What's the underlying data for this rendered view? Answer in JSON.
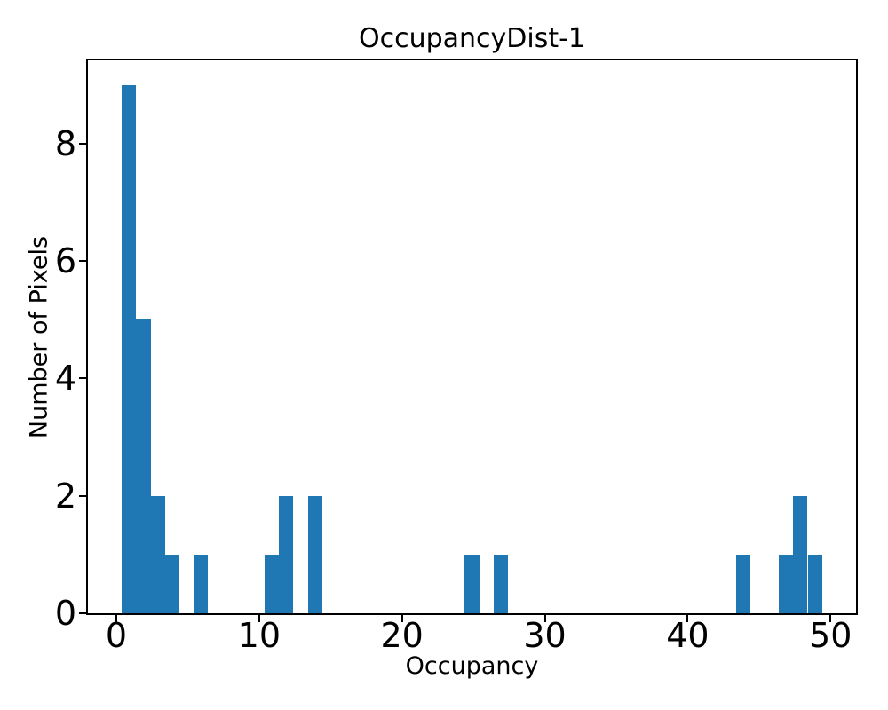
{
  "figure": {
    "background": "#ffffff",
    "text_color": "#000000"
  },
  "chart_data": {
    "type": "bar",
    "subtype": "histogram",
    "title": "OccupancyDist-1",
    "xlabel": "Occupancy",
    "ylabel": "Number of Pixels",
    "bar_color": "#1f77b4",
    "axis_color": "#000000",
    "grid": false,
    "legend": false,
    "xlim": [
      -2.05,
      51.85
    ],
    "ylim": [
      0,
      9.45
    ],
    "x_ticks": [
      0,
      10,
      20,
      30,
      40,
      50
    ],
    "y_ticks": [
      0,
      2,
      4,
      6,
      8
    ],
    "bin_width": 1.0,
    "bars": [
      {
        "x": 0.4,
        "count": 9
      },
      {
        "x": 1.4,
        "count": 5
      },
      {
        "x": 2.4,
        "count": 2
      },
      {
        "x": 3.4,
        "count": 1
      },
      {
        "x": 5.4,
        "count": 1
      },
      {
        "x": 10.4,
        "count": 1
      },
      {
        "x": 11.4,
        "count": 2
      },
      {
        "x": 13.4,
        "count": 2
      },
      {
        "x": 24.4,
        "count": 1
      },
      {
        "x": 26.4,
        "count": 1
      },
      {
        "x": 43.4,
        "count": 1
      },
      {
        "x": 46.4,
        "count": 1
      },
      {
        "x": 47.4,
        "count": 2
      },
      {
        "x": 48.4,
        "count": 1
      }
    ]
  }
}
